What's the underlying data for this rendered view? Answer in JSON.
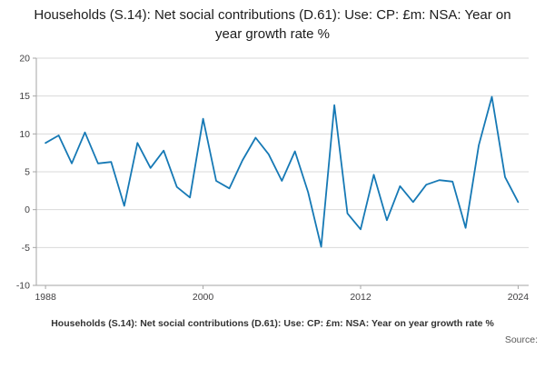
{
  "title": "Households (S.14): Net social contributions (D.61): Use: CP: £m: NSA: Year on year growth rate %",
  "footer": {
    "caption": "Households (S.14): Net social contributions (D.61): Use: CP: £m: NSA: Year on year growth rate %",
    "source_label": "Source:"
  },
  "chart_data": {
    "type": "line",
    "title": "Households (S.14): Net social contributions (D.61): Use: CP: £m: NSA: Year on year growth rate %",
    "xlabel": "",
    "ylabel": "",
    "x": [
      1988,
      1989,
      1990,
      1991,
      1992,
      1993,
      1994,
      1995,
      1996,
      1997,
      1998,
      1999,
      2000,
      2001,
      2002,
      2003,
      2004,
      2005,
      2006,
      2007,
      2008,
      2009,
      2010,
      2011,
      2012,
      2013,
      2014,
      2015,
      2016,
      2017,
      2018,
      2019,
      2020,
      2021,
      2022,
      2023,
      2024
    ],
    "values": [
      8.8,
      9.8,
      6.1,
      10.2,
      6.1,
      6.3,
      0.5,
      8.8,
      5.5,
      7.8,
      3.0,
      1.6,
      12.0,
      3.8,
      2.8,
      6.5,
      9.5,
      7.3,
      3.8,
      7.7,
      2.3,
      -4.9,
      13.8,
      -0.5,
      -2.6,
      4.6,
      -1.4,
      3.1,
      1.0,
      3.3,
      3.9,
      3.7,
      -2.4,
      8.5,
      14.9,
      4.3,
      1.0
    ],
    "xticks": [
      1988,
      2000,
      2012,
      2024
    ],
    "yticks": [
      20,
      15,
      10,
      5,
      0,
      -5,
      -10
    ],
    "ylim": [
      -10,
      20
    ],
    "xlim": [
      1987.3,
      2024.8
    ],
    "grid": true,
    "legend": "none",
    "line_color": "#1679b5",
    "grid_color": "#d9d9d9",
    "axis_color": "#a6a6a6",
    "tick_label_color": "#414042"
  }
}
